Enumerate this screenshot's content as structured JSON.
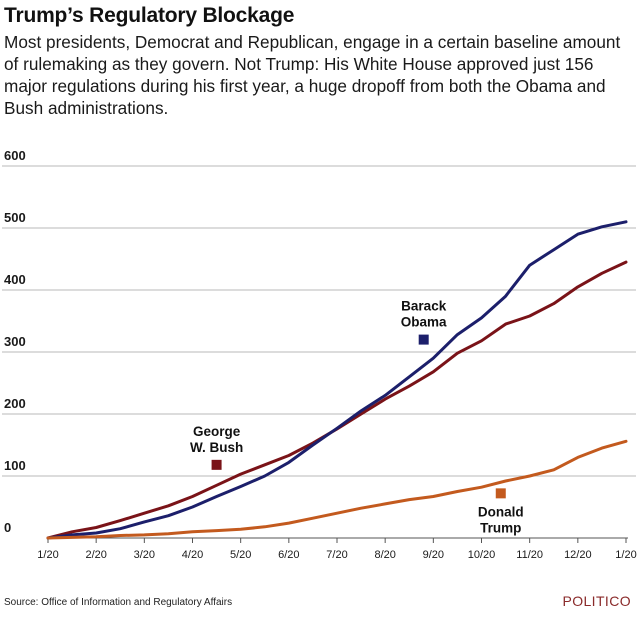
{
  "header": {
    "title": "Trump’s Regulatory Blockage",
    "subtitle": "Most presidents, Democrat and Republican, engage in a certain baseline amount of rulemaking as they govern. Not Trump: His White House approved just 156 major regulations during his first year, a huge dropoff from both the Obama and Bush administrations."
  },
  "footer": {
    "source": "Source: Office of Information and Regulatory Affairs",
    "brand": "POLITICO"
  },
  "chart_data": {
    "type": "line",
    "title": "Trump’s Regulatory Blockage",
    "xlabel": "",
    "ylabel": "",
    "ylim": [
      0,
      600
    ],
    "yticks": [
      0,
      100,
      200,
      300,
      400,
      500,
      600
    ],
    "xlim": [
      0,
      12
    ],
    "x_tick_labels": [
      "1/20",
      "2/20",
      "3/20",
      "4/20",
      "5/20",
      "6/20",
      "7/20",
      "8/20",
      "9/20",
      "10/20",
      "11/20",
      "12/20",
      "1/20"
    ],
    "grid": true,
    "series": [
      {
        "name": "George W. Bush",
        "label_lines": [
          "George",
          "W. Bush"
        ],
        "color": "#7a1318",
        "x": [
          0,
          0.5,
          1,
          1.5,
          2,
          2.5,
          3,
          3.5,
          4,
          4.5,
          5,
          5.5,
          6,
          6.5,
          7,
          7.5,
          8,
          8.5,
          9,
          9.5,
          10,
          10.5,
          11,
          11.5,
          12
        ],
        "values": [
          0,
          10,
          17,
          28,
          40,
          52,
          67,
          85,
          103,
          118,
          133,
          153,
          176,
          200,
          224,
          245,
          268,
          298,
          318,
          345,
          358,
          378,
          405,
          427,
          445
        ]
      },
      {
        "name": "Barack Obama",
        "label_lines": [
          "Barack",
          "Obama"
        ],
        "color": "#1c1f6b",
        "x": [
          0,
          0.5,
          1,
          1.5,
          2,
          2.5,
          3,
          3.5,
          4,
          4.5,
          5,
          5.5,
          6,
          6.5,
          7,
          7.5,
          8,
          8.5,
          9,
          9.5,
          10,
          10.5,
          11,
          11.5,
          12
        ],
        "values": [
          0,
          5,
          8,
          15,
          26,
          36,
          50,
          67,
          83,
          100,
          122,
          150,
          177,
          205,
          230,
          260,
          290,
          328,
          355,
          390,
          440,
          465,
          490,
          502,
          510
        ]
      },
      {
        "name": "Donald Trump",
        "label_lines": [
          "Donald",
          "Trump"
        ],
        "color": "#c35a1e",
        "x": [
          0,
          0.5,
          1,
          1.5,
          2,
          2.5,
          3,
          3.5,
          4,
          4.5,
          5,
          5.5,
          6,
          6.5,
          7,
          7.5,
          8,
          8.5,
          9,
          9.5,
          10,
          10.5,
          11,
          11.5,
          12
        ],
        "values": [
          0,
          1,
          2,
          4,
          5,
          7,
          10,
          12,
          14,
          18,
          24,
          32,
          40,
          48,
          55,
          62,
          67,
          75,
          82,
          92,
          100,
          110,
          130,
          145,
          156
        ]
      }
    ],
    "markers": [
      {
        "series": "George W. Bush",
        "x": 3.5,
        "y": 118
      },
      {
        "series": "Barack Obama",
        "x": 7.8,
        "y": 320
      },
      {
        "series": "Donald Trump",
        "x": 9.4,
        "y": 72
      }
    ]
  }
}
